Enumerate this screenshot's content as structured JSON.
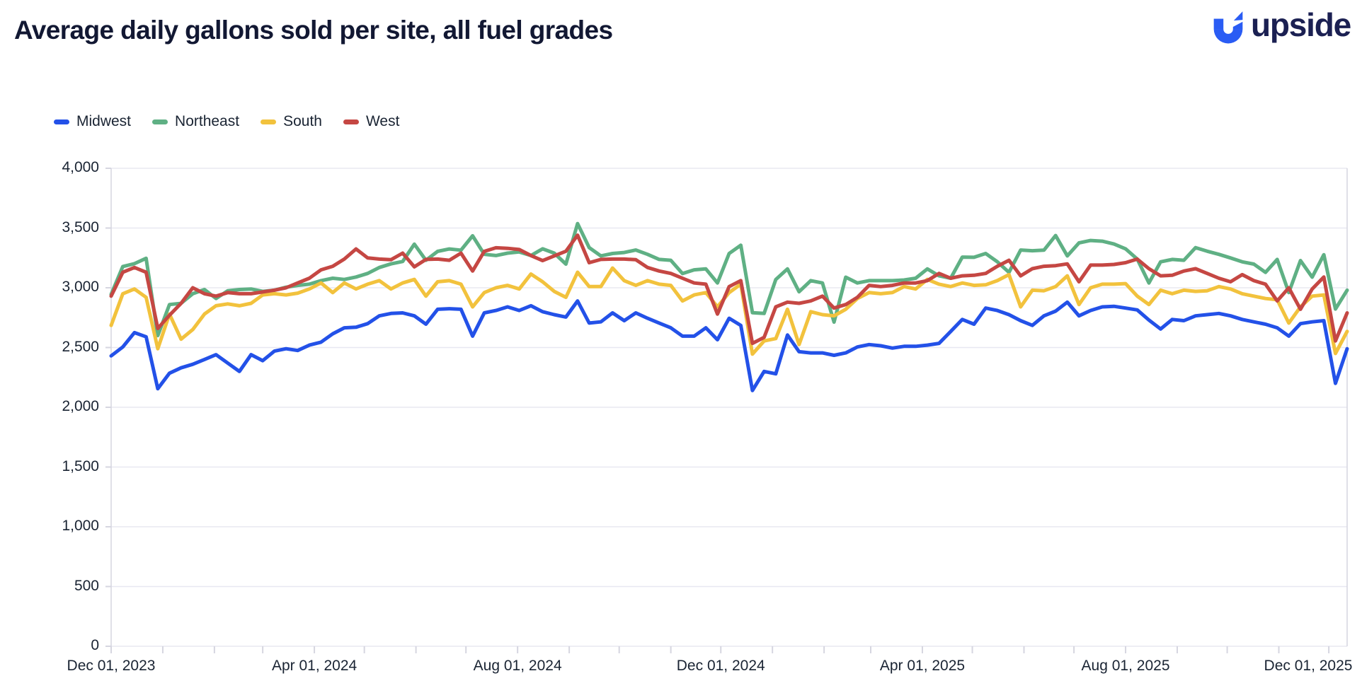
{
  "header": {
    "title": "Average daily gallons sold per site, all fuel grades",
    "brand": "upside"
  },
  "colors": {
    "title_text": "#121833",
    "axis_text": "#1A2433",
    "gridline": "#E8E8F1",
    "axis_line": "#D6D6E0",
    "brand_blue": "#2A5CF4",
    "brand_navy": "#1B2052"
  },
  "chart_data": {
    "type": "line",
    "title": "Average daily gallons sold per site, all fuel grades",
    "xlabel": "",
    "ylabel": "",
    "ylim": [
      0,
      4000
    ],
    "y_tick_step": 500,
    "y_tick_labels": [
      "0",
      "500",
      "1,000",
      "1,500",
      "2,000",
      "2,500",
      "3,000",
      "3,500",
      "4,000"
    ],
    "grid": "horizontal",
    "legend_position": "top-left",
    "x_start_date": "2023-12-01",
    "x_interval_days": 7,
    "x_axis_ticks": [
      {
        "label": "Dec 01, 2023",
        "day_offset": 0
      },
      {
        "label": "Apr 01, 2024",
        "day_offset": 122
      },
      {
        "label": "Aug 01, 2024",
        "day_offset": 244
      },
      {
        "label": "Dec 01, 2024",
        "day_offset": 366
      },
      {
        "label": "Apr 01, 2025",
        "day_offset": 487
      },
      {
        "label": "Aug 01, 2025",
        "day_offset": 609
      },
      {
        "label": "Dec 01, 2025",
        "day_offset": 731
      }
    ],
    "series": [
      {
        "name": "Midwest",
        "color": "#2351E8",
        "values": [
          2430,
          2505,
          2625,
          2590,
          2155,
          2285,
          2330,
          2360,
          2400,
          2440,
          2370,
          2300,
          2440,
          2390,
          2470,
          2490,
          2475,
          2520,
          2545,
          2615,
          2665,
          2670,
          2700,
          2765,
          2785,
          2790,
          2765,
          2695,
          2820,
          2825,
          2820,
          2595,
          2790,
          2810,
          2840,
          2810,
          2850,
          2800,
          2775,
          2755,
          2890,
          2705,
          2715,
          2790,
          2725,
          2790,
          2745,
          2705,
          2665,
          2595,
          2595,
          2665,
          2565,
          2745,
          2685,
          2140,
          2300,
          2280,
          2605,
          2465,
          2455,
          2455,
          2435,
          2455,
          2505,
          2525,
          2515,
          2495,
          2510,
          2510,
          2520,
          2535,
          2635,
          2735,
          2695,
          2830,
          2810,
          2775,
          2725,
          2685,
          2765,
          2805,
          2880,
          2765,
          2810,
          2840,
          2845,
          2830,
          2815,
          2730,
          2655,
          2735,
          2725,
          2765,
          2775,
          2785,
          2765,
          2735,
          2715,
          2695,
          2665,
          2595,
          2700,
          2715,
          2725,
          2200,
          2490
        ]
      },
      {
        "name": "Northeast",
        "color": "#5FB084",
        "values": [
          2945,
          3178,
          3202,
          3247,
          2600,
          2860,
          2870,
          2950,
          2985,
          2910,
          2975,
          2985,
          2990,
          2970,
          2980,
          3005,
          3020,
          3030,
          3060,
          3080,
          3070,
          3090,
          3120,
          3170,
          3200,
          3220,
          3365,
          3230,
          3305,
          3325,
          3315,
          3435,
          3280,
          3270,
          3290,
          3300,
          3270,
          3326,
          3290,
          3198,
          3537,
          3336,
          3267,
          3287,
          3295,
          3316,
          3280,
          3237,
          3230,
          3119,
          3150,
          3158,
          3040,
          3287,
          3356,
          2792,
          2785,
          3069,
          3158,
          2967,
          3060,
          3040,
          2713,
          3089,
          3040,
          3060,
          3060,
          3060,
          3065,
          3080,
          3158,
          3100,
          3080,
          3257,
          3255,
          3287,
          3218,
          3129,
          3316,
          3310,
          3315,
          3437,
          3267,
          3376,
          3396,
          3390,
          3366,
          3326,
          3240,
          3040,
          3217,
          3237,
          3230,
          3336,
          3306,
          3280,
          3250,
          3217,
          3198,
          3129,
          3237,
          2960,
          3228,
          3089,
          3277,
          2822,
          2980
        ]
      },
      {
        "name": "South",
        "color": "#F2C23D",
        "values": [
          2685,
          2950,
          2990,
          2920,
          2490,
          2780,
          2570,
          2650,
          2780,
          2850,
          2865,
          2850,
          2870,
          2940,
          2950,
          2940,
          2955,
          2990,
          3040,
          2960,
          3040,
          2990,
          3030,
          3060,
          2990,
          3040,
          3070,
          2930,
          3050,
          3060,
          3030,
          2840,
          2960,
          3000,
          3020,
          2990,
          3115,
          3050,
          2970,
          2920,
          3130,
          3010,
          3010,
          3165,
          3060,
          3020,
          3060,
          3030,
          3020,
          2890,
          2940,
          2960,
          2840,
          2960,
          3030,
          2445,
          2555,
          2575,
          2820,
          2525,
          2800,
          2775,
          2765,
          2820,
          2910,
          2960,
          2950,
          2960,
          3010,
          2990,
          3070,
          3030,
          3010,
          3040,
          3020,
          3025,
          3060,
          3110,
          2840,
          2980,
          2975,
          3010,
          3100,
          2860,
          3000,
          3030,
          3030,
          3035,
          2930,
          2860,
          2980,
          2950,
          2980,
          2970,
          2975,
          3010,
          2990,
          2950,
          2930,
          2910,
          2900,
          2705,
          2840,
          2930,
          2940,
          2450,
          2635
        ]
      },
      {
        "name": "West",
        "color": "#C54743",
        "values": [
          2930,
          3130,
          3170,
          3130,
          2660,
          2770,
          2870,
          3000,
          2950,
          2930,
          2960,
          2950,
          2950,
          2965,
          2980,
          3000,
          3040,
          3080,
          3150,
          3180,
          3240,
          3325,
          3250,
          3240,
          3235,
          3290,
          3175,
          3237,
          3240,
          3230,
          3290,
          3140,
          3305,
          3335,
          3330,
          3320,
          3270,
          3227,
          3267,
          3306,
          3440,
          3210,
          3237,
          3240,
          3240,
          3235,
          3170,
          3140,
          3120,
          3080,
          3040,
          3030,
          2780,
          3010,
          3060,
          2535,
          2585,
          2840,
          2880,
          2870,
          2890,
          2930,
          2830,
          2860,
          2920,
          3020,
          3010,
          3020,
          3040,
          3040,
          3060,
          3120,
          3080,
          3100,
          3105,
          3120,
          3180,
          3230,
          3100,
          3160,
          3180,
          3185,
          3200,
          3050,
          3190,
          3190,
          3195,
          3210,
          3240,
          3160,
          3100,
          3105,
          3140,
          3160,
          3120,
          3080,
          3050,
          3110,
          3060,
          3030,
          2890,
          3000,
          2820,
          2990,
          3090,
          2555,
          2790
        ]
      }
    ]
  }
}
